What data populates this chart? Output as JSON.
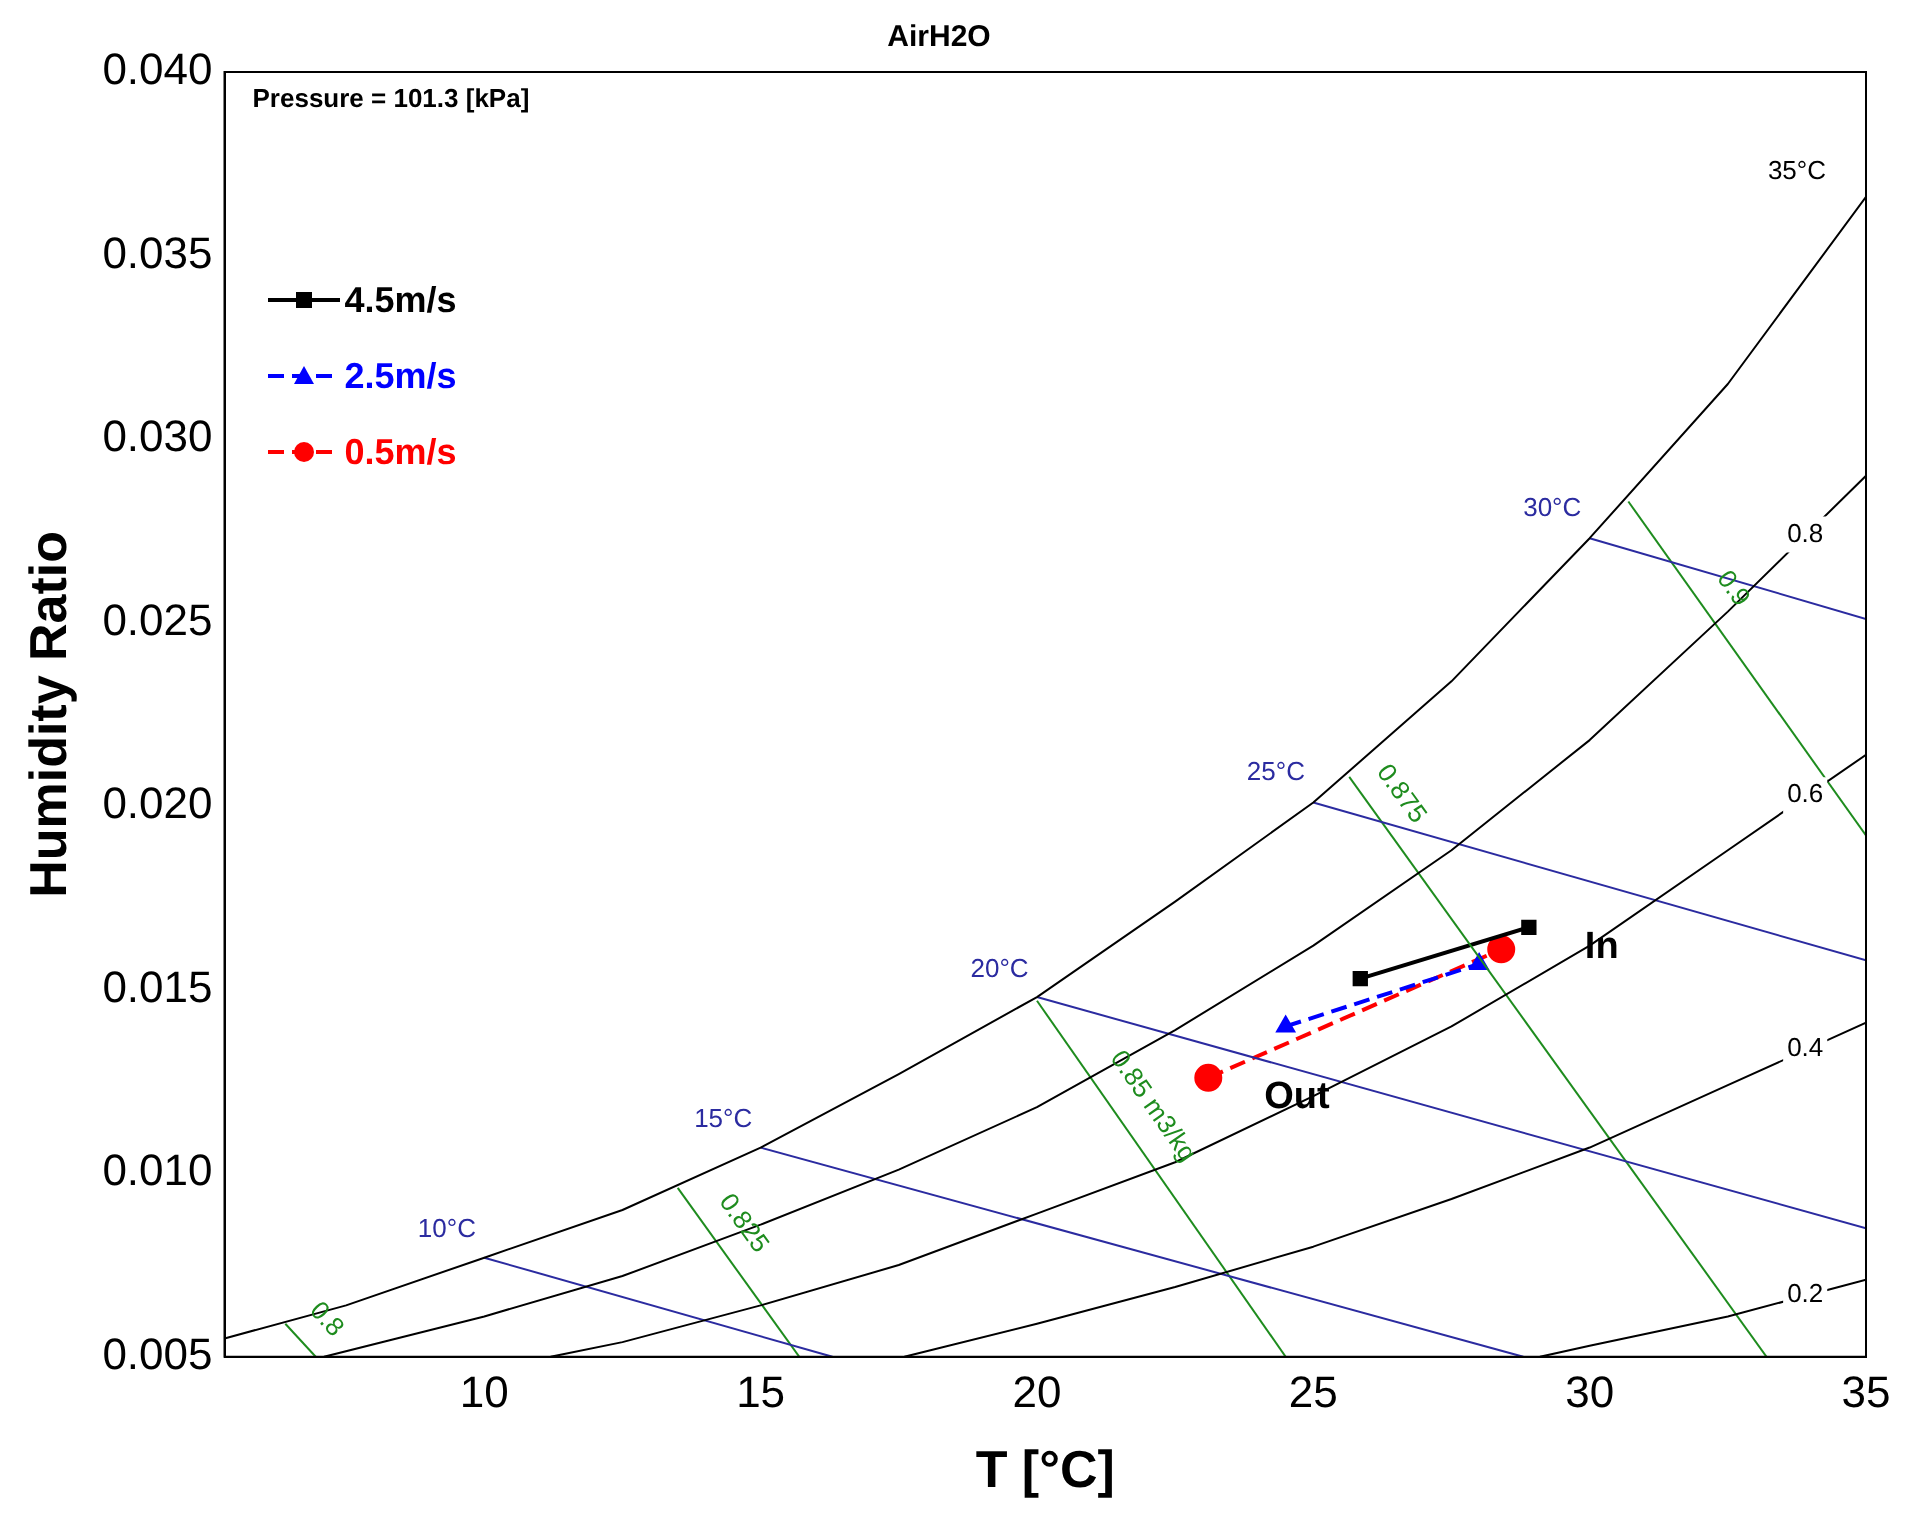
{
  "chart_data": {
    "type": "line",
    "title": "AirH2O",
    "xlabel": "T [°C]",
    "ylabel": "Humidity Ratio",
    "xlim": [
      5.3,
      35
    ],
    "ylim": [
      0.005,
      0.04
    ],
    "xticks": [
      10,
      15,
      20,
      25,
      30,
      35
    ],
    "yticks": [
      0.005,
      {
        "value": 0.01,
        "label": "0.010"
      },
      0.015,
      {
        "value": 0.02,
        "label": "0.020"
      },
      0.025,
      {
        "value": 0.03,
        "label": "0.030"
      },
      0.035,
      {
        "value": 0.04,
        "label": "0.040"
      }
    ],
    "grid": false,
    "legend": "top left",
    "series": [
      {
        "color": "#000000",
        "x": [
          5.3,
          7.5,
          10,
          12.5,
          15,
          17.5,
          20,
          22.5,
          25,
          27.5,
          30,
          32.5,
          35
        ],
        "values": [
          0.0055,
          0.0064,
          0.0077,
          0.009,
          0.0107,
          0.0127,
          0.0148,
          0.0174,
          0.0201,
          0.0234,
          0.0273,
          0.0315,
          0.0366
        ]
      },
      {
        "color": "#000000",
        "x": [
          7.1,
          10,
          12.5,
          15,
          17.5,
          20,
          22.5,
          25,
          27.5,
          30,
          32.5,
          35
        ],
        "values": [
          0.005,
          0.0061,
          0.0072,
          0.0086,
          0.0101,
          0.0118,
          0.0139,
          0.0162,
          0.0188,
          0.0218,
          0.0253,
          0.029
        ]
      },
      {
        "color": "#000000",
        "x": [
          11.2,
          12.5,
          15,
          17.5,
          20,
          22.5,
          25,
          27.5,
          30,
          32.5,
          35
        ],
        "values": [
          0.005,
          0.0054,
          0.0064,
          0.0075,
          0.0089,
          0.0103,
          0.0121,
          0.014,
          0.0162,
          0.0188,
          0.0214
        ]
      },
      {
        "color": "#000000",
        "x": [
          17.6,
          20,
          22.5,
          25,
          27.5,
          30,
          32.5,
          35
        ],
        "values": [
          0.005,
          0.0059,
          0.0069,
          0.008,
          0.0093,
          0.0107,
          0.0124,
          0.0141
        ]
      },
      {
        "color": "#000000",
        "x": [
          29.1,
          30,
          32.5,
          35
        ],
        "values": [
          0.005,
          0.0053,
          0.0061,
          0.0071
        ]
      },
      {
        "color": "#2b2ba0",
        "x": [
          10,
          16.3
        ],
        "values": [
          0.0077,
          0.005
        ]
      },
      {
        "color": "#2b2ba0",
        "x": [
          15,
          28.8
        ],
        "values": [
          0.0107,
          0.005
        ]
      },
      {
        "color": "#2b2ba0",
        "x": [
          20,
          35
        ],
        "values": [
          0.0148,
          0.0085
        ]
      },
      {
        "color": "#2b2ba0",
        "x": [
          25,
          35
        ],
        "values": [
          0.0201,
          0.0158
        ]
      },
      {
        "color": "#2b2ba0",
        "x": [
          30,
          35
        ],
        "values": [
          0.0273,
          0.0251
        ]
      },
      {
        "color": "#1e8c1e",
        "x": [
          6.4,
          6.95
        ],
        "values": [
          0.0059,
          0.005
        ]
      },
      {
        "color": "#1e8c1e",
        "x": [
          13.5,
          15.7
        ],
        "values": [
          0.0096,
          0.005
        ]
      },
      {
        "color": "#1e8c1e",
        "x": [
          20,
          24.5
        ],
        "values": [
          0.0147,
          0.005
        ]
      },
      {
        "color": "#1e8c1e",
        "x": [
          25.65,
          33.2
        ],
        "values": [
          0.0208,
          0.005
        ]
      },
      {
        "color": "#1e8c1e",
        "x": [
          30.7,
          35
        ],
        "values": [
          0.0283,
          0.0192
        ]
      },
      {
        "name": "4.5m/s",
        "color": "#000000",
        "marker": "square",
        "line_style": "solid",
        "x": [
          25.85,
          28.9
        ],
        "values": [
          0.0153,
          0.0167
        ]
      },
      {
        "name": "2.5m/s",
        "color": "#0000ff",
        "marker": "triangle",
        "line_style": "dashed",
        "x": [
          24.5,
          28
        ],
        "values": [
          0.014,
          0.0157
        ]
      },
      {
        "name": "0.5m/s",
        "color": "#ff0000",
        "marker": "circle",
        "line_style": "dashed",
        "x": [
          23.1,
          28.4
        ],
        "values": [
          0.0126,
          0.0161
        ]
      }
    ],
    "annotations": [
      "Pressure = 101.3 [kPa]",
      {
        "text": "10°C",
        "x": 10.5,
        "y": 0.00745
      },
      {
        "text": "15°C",
        "x": 15.5,
        "y": 0.01045
      },
      {
        "text": "20°C",
        "x": 20.5,
        "y": 0.01454
      },
      {
        "text": "25°C",
        "x": 25.5,
        "y": 0.01989
      },
      {
        "text": "30°C",
        "x": 30.5,
        "y": 0.02708
      },
      {
        "text": "35°C",
        "x": 35,
        "y": 0.0366
      },
      {
        "text": "0.8",
        "x": 33.9,
        "y": 0.0274
      },
      {
        "text": "0.6",
        "x": 33.9,
        "y": 0.0203
      },
      {
        "text": "0.4",
        "x": 33.9,
        "y": 0.0134
      },
      {
        "text": "0.2",
        "x": 33.9,
        "y": 0.0067
      },
      {
        "text": "0.8",
        "x": 6.7,
        "y": 0.0054
      },
      {
        "text": "0.825",
        "x": 14.2,
        "y": 0.0081
      },
      {
        "text": "0.85 m3/kg",
        "x": 21.6,
        "y": 0.0113
      },
      {
        "text": "0.875",
        "x": 26.1,
        "y": 0.0198
      },
      {
        "text": "0.9",
        "x": 32.1,
        "y": 0.0254
      },
      {
        "text": "In",
        "x": 28.9,
        "y": 0.0167
      },
      {
        "text": "Out",
        "x": 23.1,
        "y": 0.0126
      }
    ]
  }
}
